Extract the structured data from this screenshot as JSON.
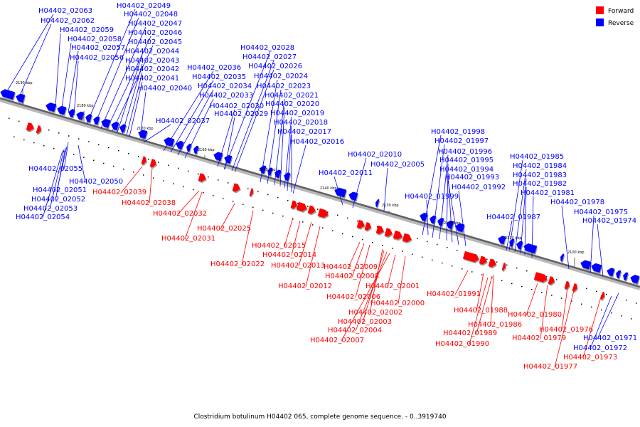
{
  "caption": "Clostridium botulinum H04402 065, complete genome sequence. - 0..3919740",
  "legend": [
    {
      "label": "Forward",
      "color": "#ff0000"
    },
    {
      "label": "Reverse",
      "color": "#0000ff"
    }
  ],
  "colors": {
    "forward": "#ff0000",
    "reverse": "#0000ff",
    "backbone": "#808080"
  },
  "scale_labels": [
    "2190 kbp",
    "2180 kbp",
    "2170 kbp",
    "2160 kbp",
    "2150 kbp",
    "2140 kbp",
    "2130 kbp",
    "2120 kbp",
    "2110 kbp",
    "2100 kbp"
  ],
  "reverse_top_labels": [
    "H04402_02063",
    "H04402_02062",
    "H04402_02059",
    "H04402_02058",
    "H04402_02057",
    "H04402_02056",
    "H04402_02049",
    "H04402_02048",
    "H04402_02047",
    "H04402_02046",
    "H04402_02045",
    "H04402_02044",
    "H04402_02043",
    "H04402_02042",
    "H04402_02041",
    "H04402_02040",
    "H04402_02036",
    "H04402_02035",
    "H04402_02034",
    "H04402_02033",
    "H04402_02030",
    "H04402_02029",
    "H04402_02037",
    "H04402_02028",
    "H04402_02027",
    "H04402_02026",
    "H04402_02024",
    "H04402_02023",
    "H04402_02021",
    "H04402_02020",
    "H04402_02019",
    "H04402_02018",
    "H04402_02017",
    "H04402_02016",
    "H04402_02010",
    "H04402_02011",
    "H04402_02005",
    "H04402_01998",
    "H04402_01997",
    "H04402_01996",
    "H04402_01995",
    "H04402_01994",
    "H04402_01993",
    "H04402_01992",
    "H04402_01999",
    "H04402_01985",
    "H04402_01984",
    "H04402_01983",
    "H04402_01982",
    "H04402_01981",
    "H04402_01987",
    "H04402_01978",
    "H04402_01975",
    "H04402_01974"
  ],
  "reverse_bottom_labels": [
    "H04402_02055",
    "H04402_02050",
    "H04402_02051",
    "H04402_02052",
    "H04402_02053",
    "H04402_02054",
    "H04402_01971",
    "H04402_01972"
  ],
  "forward_labels": [
    "H04402_02039",
    "H04402_02038",
    "H04402_02032",
    "H04402_02031",
    "H04402_02025",
    "H04402_02022",
    "H04402_02015",
    "H04402_02014",
    "H04402_02013",
    "H04402_02012",
    "H04402_02009",
    "H04402_02008",
    "H04402_02006",
    "H04402_02002",
    "H04402_02003",
    "H04402_02004",
    "H04402_02007",
    "H04402_02001",
    "H04402_02000",
    "H04402_01991",
    "H04402_01988",
    "H04402_01986",
    "H04402_01989",
    "H04402_01990",
    "H04402_01980",
    "H04402_01976",
    "H04402_01979",
    "H04402_01973",
    "H04402_01977"
  ]
}
